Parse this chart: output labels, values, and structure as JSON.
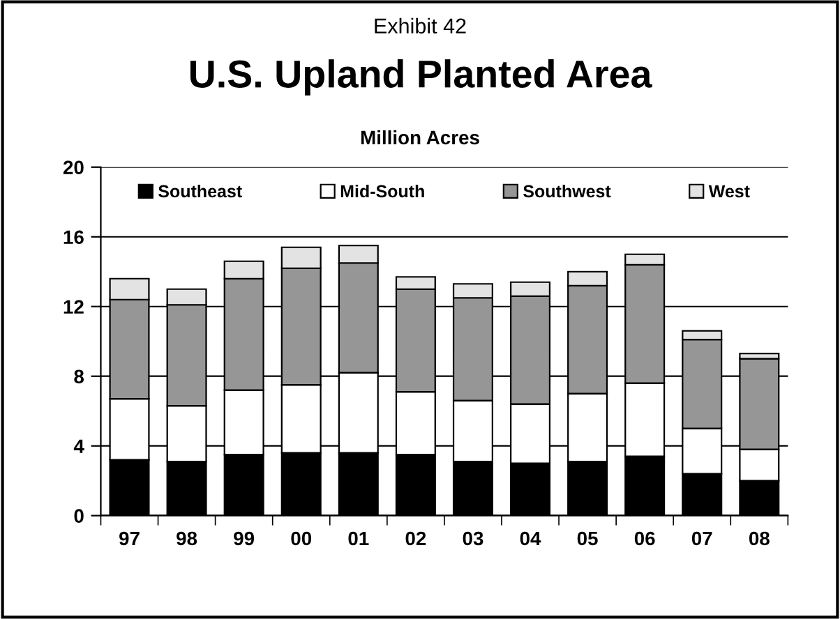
{
  "chart_data": {
    "type": "bar",
    "stacked": true,
    "title": "Exhibit 42",
    "subtitle": "U.S. Upland Planted Area",
    "ylabel": "Million Acres",
    "categories": [
      "97",
      "98",
      "99",
      "00",
      "01",
      "02",
      "03",
      "04",
      "05",
      "06",
      "07",
      "08"
    ],
    "series": [
      {
        "name": "Southeast",
        "color": "#000000",
        "values": [
          3.2,
          3.1,
          3.5,
          3.6,
          3.6,
          3.5,
          3.1,
          3.0,
          3.1,
          3.4,
          2.4,
          2.0
        ]
      },
      {
        "name": "Mid-South",
        "color": "#ffffff",
        "values": [
          3.5,
          3.2,
          3.7,
          3.9,
          4.6,
          3.6,
          3.5,
          3.4,
          3.9,
          4.2,
          2.6,
          1.8
        ]
      },
      {
        "name": "Southwest",
        "color": "#969696",
        "values": [
          5.7,
          5.8,
          6.4,
          6.7,
          6.3,
          5.9,
          5.9,
          6.2,
          6.2,
          6.8,
          5.1,
          5.2
        ]
      },
      {
        "name": "West",
        "color": "#e3e3e3",
        "values": [
          1.2,
          0.9,
          1.0,
          1.2,
          1.0,
          0.7,
          0.8,
          0.8,
          0.8,
          0.6,
          0.5,
          0.3
        ]
      }
    ],
    "ylim": [
      0,
      20
    ],
    "yticks": [
      0,
      4,
      8,
      12,
      16,
      20
    ],
    "grid": "y",
    "legend": "top"
  }
}
